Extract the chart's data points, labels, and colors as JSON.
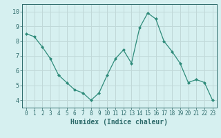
{
  "x": [
    0,
    1,
    2,
    3,
    4,
    5,
    6,
    7,
    8,
    9,
    10,
    11,
    12,
    13,
    14,
    15,
    16,
    17,
    18,
    19,
    20,
    21,
    22,
    23
  ],
  "y": [
    8.5,
    8.3,
    7.6,
    6.8,
    5.7,
    5.2,
    4.7,
    4.5,
    4.0,
    4.5,
    5.7,
    6.8,
    7.4,
    6.5,
    8.9,
    9.9,
    9.5,
    8.0,
    7.3,
    6.5,
    5.2,
    5.4,
    5.2,
    4.0
  ],
  "line_color": "#2e8b7a",
  "marker": "D",
  "marker_size": 2.0,
  "bg_color": "#d6f0f0",
  "grid_color": "#c0d8d8",
  "xlabel": "Humidex (Indice chaleur)",
  "ylim": [
    3.5,
    10.5
  ],
  "xlim": [
    -0.5,
    23.5
  ],
  "yticks": [
    4,
    5,
    6,
    7,
    8,
    9,
    10
  ],
  "xticks": [
    0,
    1,
    2,
    3,
    4,
    5,
    6,
    7,
    8,
    9,
    10,
    11,
    12,
    13,
    14,
    15,
    16,
    17,
    18,
    19,
    20,
    21,
    22,
    23
  ],
  "tick_color": "#2e6b6b",
  "xlabel_fontsize": 7,
  "ytick_fontsize": 6,
  "xtick_fontsize": 5.5
}
